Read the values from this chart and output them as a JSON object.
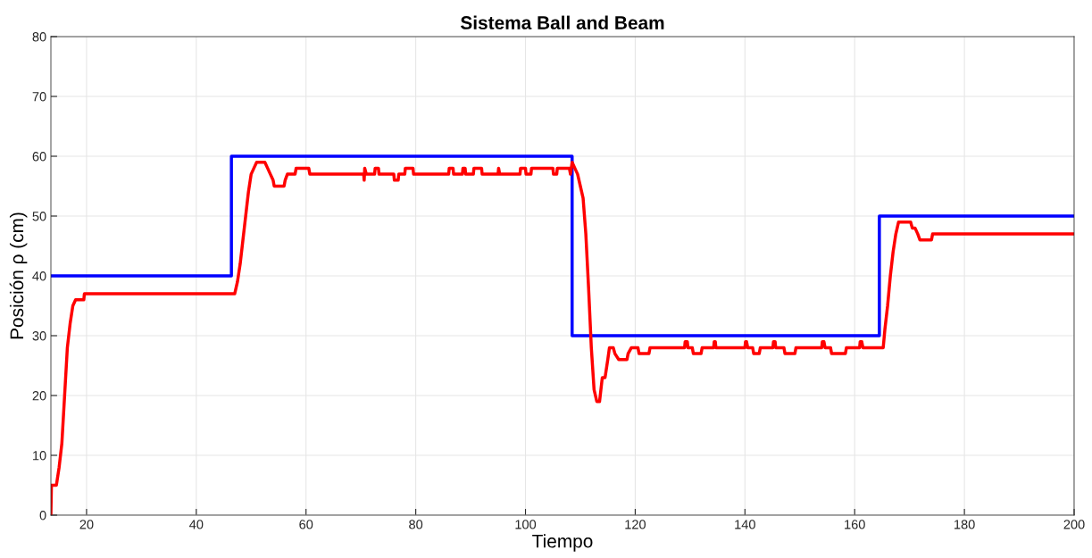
{
  "chart_data": {
    "type": "line",
    "title": "Sistema Ball and Beam",
    "xlabel": "Tiempo",
    "ylabel": "Posición ρ (cm)",
    "xlim": [
      13.5,
      200
    ],
    "ylim": [
      0,
      80
    ],
    "xticks": [
      20,
      40,
      60,
      80,
      100,
      120,
      140,
      160,
      180,
      200
    ],
    "yticks": [
      0,
      10,
      20,
      30,
      40,
      50,
      60,
      70,
      80
    ],
    "grid": true,
    "series": [
      {
        "type": "step",
        "color": "#0000ff",
        "x": [
          13.5,
          46.4,
          108.5,
          164.5,
          200
        ],
        "values": [
          40,
          60,
          30,
          50,
          50
        ]
      },
      {
        "color": "#ff0000",
        "x": [
          13.5,
          13.6,
          14.5,
          15,
          15.5,
          16,
          16.5,
          17,
          17.5,
          18,
          19.5,
          19.6,
          47,
          47.5,
          48,
          48.5,
          49,
          49.5,
          50,
          50.5,
          51,
          52.5,
          53,
          53.5,
          54,
          54.2,
          56,
          56.2,
          56.6,
          58,
          58.2,
          60.5,
          60.7,
          70.5,
          70.6,
          70.7,
          71,
          72.5,
          72.6,
          73.2,
          73.3,
          76,
          76.1,
          76.8,
          76.9,
          78,
          78.1,
          79.5,
          79.6,
          86,
          86.1,
          86.8,
          86.9,
          88.5,
          88.6,
          89,
          89.1,
          90.5,
          90.6,
          92,
          92.1,
          95,
          95.1,
          95.3,
          99,
          99.1,
          100,
          100.1,
          101,
          101.1,
          105,
          105.1,
          105.7,
          105.8,
          108,
          108.2,
          108.5,
          109,
          109.5,
          110,
          110.5,
          111,
          111.5,
          112,
          112.5,
          113,
          113.5,
          114,
          114.5,
          115,
          115.3,
          116,
          116.3,
          117,
          118.5,
          118.7,
          119.3,
          120.5,
          120.7,
          122.5,
          122.7,
          129,
          129.1,
          129.5,
          129.6,
          130.4,
          130.6,
          132,
          132.2,
          134.3,
          134.4,
          134.6,
          134.7,
          140,
          140.1,
          140.3,
          140.5,
          141.4,
          141.6,
          142.6,
          142.8,
          145.1,
          145.2,
          145.5,
          145.6,
          147.1,
          147.3,
          149.1,
          149.3,
          154,
          154.1,
          154.4,
          154.6,
          155.6,
          155.8,
          158.3,
          158.5,
          160.9,
          161,
          161.3,
          161.5,
          165.2,
          165.5,
          166,
          166.5,
          167,
          167.5,
          168,
          168.3,
          170.2,
          170.5,
          171,
          171.5,
          171.9,
          174,
          174.2,
          200
        ],
        "values": [
          0,
          5,
          5,
          8,
          12,
          20,
          28,
          32,
          35,
          36,
          36,
          37,
          37,
          39,
          42,
          46,
          50,
          54,
          57,
          58,
          59,
          59,
          58,
          57,
          56,
          55,
          55,
          56,
          57,
          57,
          58,
          58,
          57,
          57,
          56,
          58,
          57,
          57,
          58,
          58,
          57,
          57,
          56,
          56,
          57,
          57,
          58,
          58,
          57,
          57,
          58,
          58,
          57,
          57,
          58,
          58,
          57,
          57,
          58,
          58,
          57,
          57,
          58,
          57,
          57,
          58,
          58,
          57,
          57,
          58,
          58,
          57,
          57,
          58,
          58,
          57,
          59,
          58,
          57,
          55,
          53,
          47,
          38,
          28,
          21,
          19,
          19,
          23,
          23,
          26,
          28,
          28,
          27,
          26,
          26,
          27,
          28,
          28,
          27,
          27,
          28,
          28,
          29,
          29,
          28,
          28,
          27,
          27,
          28,
          28,
          29,
          29,
          28,
          28,
          29,
          29,
          28,
          28,
          27,
          27,
          28,
          28,
          29,
          29,
          28,
          28,
          27,
          27,
          28,
          28,
          29,
          29,
          28,
          28,
          27,
          27,
          28,
          28,
          29,
          29,
          28,
          28,
          31,
          35,
          40,
          44,
          47,
          49,
          49,
          49,
          48,
          48,
          47,
          46,
          46,
          47,
          47
        ]
      }
    ]
  }
}
